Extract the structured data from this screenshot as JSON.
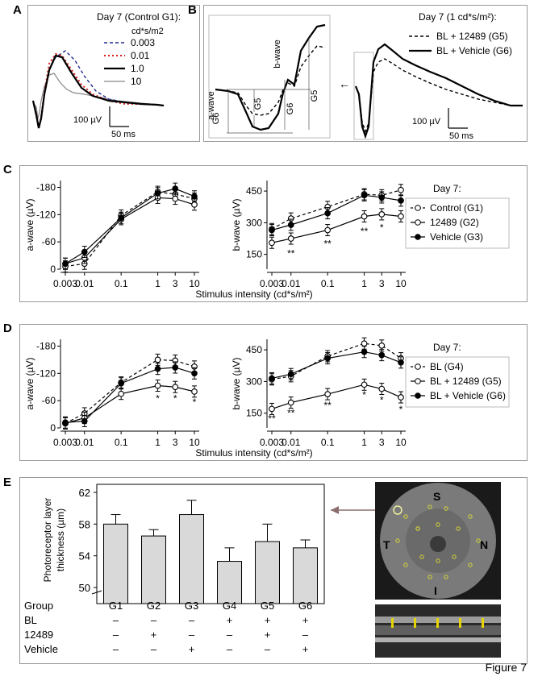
{
  "figure_label": "Figure 7",
  "panel_letters": {
    "A": "A",
    "B": "B",
    "C": "C",
    "D": "D",
    "E": "E"
  },
  "panelA": {
    "title": "Day 7 (Control G1):",
    "legend_title": "cd*s/m2",
    "legend": [
      {
        "label": "0.003",
        "color": "#1f2a8c",
        "dash": "4,3",
        "width": 1.4
      },
      {
        "label": "0.01",
        "color": "#d81e1e",
        "dash": "2,3",
        "width": 2
      },
      {
        "label": "1.0",
        "color": "#000000",
        "dash": "",
        "width": 2.2
      },
      {
        "label": "10",
        "color": "#888888",
        "dash": "",
        "width": 1.2
      }
    ],
    "scale_y": "100 µV",
    "scale_x": "50 ms"
  },
  "panelB": {
    "title": "Day 7 (1 cd*s/m²):",
    "legend": [
      {
        "label": "BL + 12489 (G5)",
        "dash": "4,3",
        "width": 1.4
      },
      {
        "label": "BL + Vehicle (G6)",
        "dash": "",
        "width": 2.2
      }
    ],
    "inset_labels": {
      "a_wave": "a-wave",
      "b_wave": "b-wave",
      "g6": "G6",
      "g5": "G5"
    },
    "scale_y": "100 µV",
    "scale_x": "50 ms"
  },
  "chart_data": [
    {
      "id": "C-a",
      "type": "line",
      "ylabel": "a-wave (µV)",
      "y_reversed": true,
      "ylim": [
        0,
        -195
      ],
      "yticks": [
        -180,
        -120,
        -60,
        0
      ],
      "x": [
        0.003,
        0.01,
        0.1,
        1,
        3,
        10
      ],
      "x_scale": "log",
      "series": [
        {
          "name": "Control (G1)",
          "style": "open-dashed",
          "values": [
            -6,
            -12,
            -118,
            -170,
            -165,
            -155
          ]
        },
        {
          "name": "12489 (G2)",
          "style": "open-solid",
          "values": [
            -12,
            -25,
            -110,
            -157,
            -155,
            -142
          ]
        },
        {
          "name": "Vehicle (G3)",
          "style": "filled-solid",
          "values": [
            -12,
            -38,
            -113,
            -167,
            -177,
            -160
          ]
        }
      ]
    },
    {
      "id": "C-b",
      "type": "line",
      "ylabel": "b-wave (µV)",
      "ylim": [
        80,
        500
      ],
      "yticks": [
        150,
        300,
        450
      ],
      "x": [
        0.003,
        0.01,
        0.1,
        1,
        3,
        10
      ],
      "x_scale": "log",
      "series": [
        {
          "name": "Control (G1)",
          "style": "open-dashed",
          "values": [
            270,
            320,
            375,
            435,
            430,
            455
          ]
        },
        {
          "name": "12489 (G2)",
          "style": "open-solid",
          "values": [
            205,
            225,
            265,
            330,
            340,
            330
          ]
        },
        {
          "name": "Vehicle (G3)",
          "style": "filled-solid",
          "values": [
            265,
            290,
            345,
            430,
            420,
            405
          ]
        }
      ],
      "annotations": [
        {
          "x": 0.01,
          "text": "**",
          "y": 140
        },
        {
          "x": 0.1,
          "text": "**",
          "y": 185
        },
        {
          "x": 1,
          "text": "**",
          "y": 245
        },
        {
          "x": 3,
          "text": "*",
          "y": 262
        }
      ],
      "legend_title": "Day 7:"
    },
    {
      "id": "D-a",
      "type": "line",
      "ylabel": "a-wave (µV)",
      "y_reversed": true,
      "ylim": [
        0,
        -195
      ],
      "yticks": [
        -180,
        -120,
        -60,
        0
      ],
      "x": [
        0.003,
        0.01,
        0.1,
        1,
        3,
        10
      ],
      "x_scale": "log",
      "series": [
        {
          "name": "BL (G4)",
          "style": "open-dashed",
          "values": [
            -10,
            -32,
            -100,
            -150,
            -148,
            -135
          ]
        },
        {
          "name": "BL + 12489 (G5)",
          "style": "open-solid",
          "values": [
            -10,
            -22,
            -75,
            -93,
            -90,
            -80
          ]
        },
        {
          "name": "BL + Vehicle (G6)",
          "style": "filled-solid",
          "values": [
            -12,
            -15,
            -98,
            -130,
            -133,
            -120
          ]
        }
      ],
      "annotations": [
        {
          "x": 1,
          "text": "*",
          "y": -58
        },
        {
          "x": 3,
          "text": "*",
          "y": -58
        },
        {
          "x": 10,
          "text": "*",
          "y": -50
        }
      ]
    },
    {
      "id": "D-b",
      "type": "line",
      "ylabel": "b-wave (µV)",
      "ylim": [
        80,
        500
      ],
      "yticks": [
        150,
        300,
        450
      ],
      "x": [
        0.003,
        0.01,
        0.1,
        1,
        3,
        10
      ],
      "x_scale": "log",
      "series": [
        {
          "name": "BL (G4)",
          "style": "open-dashed",
          "values": [
            310,
            325,
            420,
            480,
            470,
            410
          ]
        },
        {
          "name": "BL + 12489 (G5)",
          "style": "open-solid",
          "values": [
            170,
            200,
            240,
            285,
            265,
            225
          ]
        },
        {
          "name": "BL + Vehicle (G6)",
          "style": "filled-solid",
          "values": [
            315,
            335,
            410,
            440,
            425,
            390
          ]
        }
      ],
      "annotations": [
        {
          "x": 0.003,
          "text": "**",
          "y": 108
        },
        {
          "x": 0.01,
          "text": "**",
          "y": 135
        },
        {
          "x": 0.1,
          "text": "**",
          "y": 172
        },
        {
          "x": 1,
          "text": "*",
          "y": 222
        },
        {
          "x": 3,
          "text": "*",
          "y": 197
        },
        {
          "x": 10,
          "text": "*",
          "y": 152
        }
      ],
      "legend_title": "Day 7:"
    },
    {
      "id": "E",
      "type": "bar",
      "ylabel": "Photoreceptor layer thickness (µm)",
      "ylim": [
        50,
        62
      ],
      "yticks": [
        50,
        54,
        58,
        62
      ],
      "categories": [
        "G1",
        "G2",
        "G3",
        "G4",
        "G5",
        "G6"
      ],
      "values": [
        58.0,
        56.5,
        59.2,
        53.3,
        55.8,
        55.0
      ],
      "errors": [
        1.2,
        0.8,
        1.8,
        1.7,
        2.2,
        1.0
      ]
    }
  ],
  "axis_labels": {
    "xticks": [
      "0.003",
      "0.01",
      "0.1",
      "1",
      "3",
      "10"
    ],
    "stimulus": "Stimulus intensity (cd*s/m²)"
  },
  "panelE": {
    "table": {
      "rows": [
        {
          "label": "Group",
          "cells": [
            "G1",
            "G2",
            "G3",
            "G4",
            "G5",
            "G6"
          ]
        },
        {
          "label": "BL",
          "cells": [
            "–",
            "–",
            "–",
            "+",
            "+",
            "+"
          ]
        },
        {
          "label": "12489",
          "cells": [
            "–",
            "+",
            "–",
            "–",
            "+",
            "–"
          ]
        },
        {
          "label": "Vehicle",
          "cells": [
            "–",
            "–",
            "+",
            "–",
            "–",
            "+"
          ]
        }
      ]
    },
    "fundus_labels": {
      "S": "S",
      "T": "T",
      "N": "N",
      "I": "I"
    }
  }
}
